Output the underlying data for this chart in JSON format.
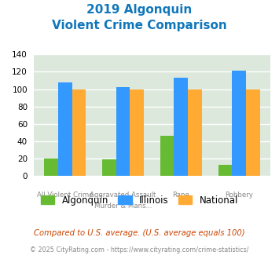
{
  "title_line1": "2019 Algonquin",
  "title_line2": "Violent Crime Comparison",
  "cat_labels_top": [
    "",
    "Aggravated Assault",
    "",
    ""
  ],
  "cat_labels_bot": [
    "All Violent Crime",
    "Murder & Mans...",
    "Rape",
    "Robbery"
  ],
  "algonquin": [
    20,
    19,
    46,
    13
  ],
  "illinois": [
    108,
    102,
    113,
    121
  ],
  "national": [
    100,
    100,
    100,
    100
  ],
  "color_algonquin": "#66bb33",
  "color_illinois": "#3399ff",
  "color_national": "#ffaa33",
  "ylim": [
    0,
    140
  ],
  "yticks": [
    0,
    20,
    40,
    60,
    80,
    100,
    120,
    140
  ],
  "plot_bg": "#dce8dc",
  "footer1": "Compared to U.S. average. (U.S. average equals 100)",
  "footer2": "© 2025 CityRating.com - https://www.cityrating.com/crime-statistics/",
  "title_color": "#1177bb",
  "footer1_color": "#cc4400",
  "footer2_color": "#888888"
}
